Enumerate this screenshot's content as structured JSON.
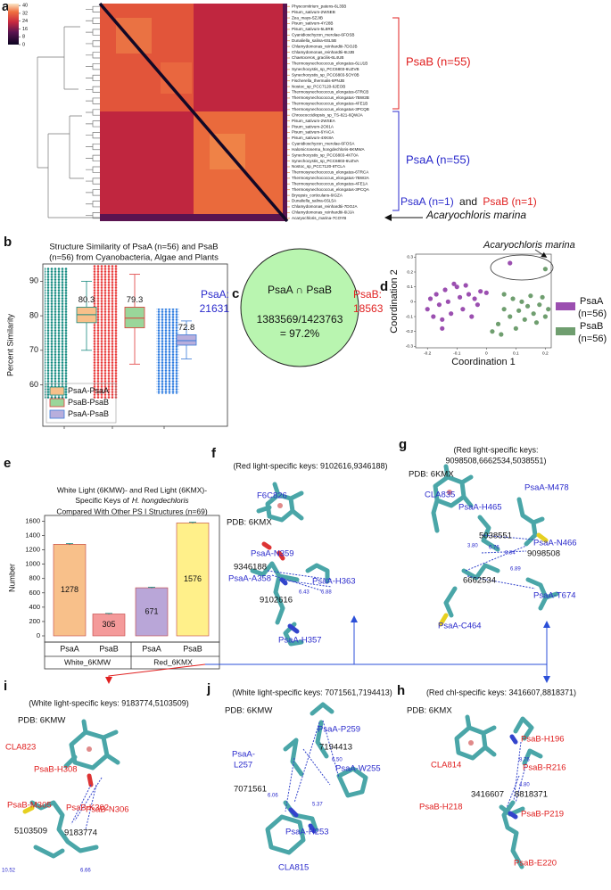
{
  "panel_a": {
    "label": "a",
    "colorbar_lim": [
      0,
      42
    ],
    "colorbar_ticks": [
      0,
      8,
      16,
      24,
      32,
      40
    ],
    "rows": [
      "Physcomitrium_patens-6L35B",
      "Pisum_sativum-2WSEB",
      "Zea_mays-5ZJIB",
      "Pisum_sativum-4Y28B",
      "Pisum_sativum-5L8RB",
      "Cyanidioschyzon_merolae-6FOSB",
      "Dunaliella_salina-6SL5B",
      "Chlamydomonas_reinhardtii-7DOJB",
      "Chlamydomonas_reinhardtii-6IJJB",
      "Chaetoceros_gracilis-6L4UB",
      "Thermosynechococcus_elongatus-6LU1B",
      "Synechocystis_sp_PCC6803-6UZVB",
      "Synechocystis_sp_PCC6803-5OY0B",
      "Fischerella_thermalis-6PNJB",
      "Nostoc_sp_PCC7120-6JEOB",
      "Thermosynechococcus_elongatus-6TRCB",
      "Thermosynechococcus_elongatus-7BW2B",
      "Thermosynechococcus_elongatus-4FE1B",
      "Thermosynechococcus_elongatus-3PCQB",
      "Chroococcidiopsis_sp_TS-821-6QWJA",
      "Pisum_sativum-2WSEA",
      "Pisum_sativum-2O01A",
      "Pisum_sativum-6YACA",
      "Pisum_sativum-4XK8A",
      "Cyanidioschyzon_merolae-6FOSA",
      "Halomicronema_hongdechloris-6KMWA",
      "Synechocystis_sp_PCC6803-4KT0A",
      "Synechocystis_sp_PCC6803-6UZVA",
      "Nostoc_sp_PCC7120-6TCLA",
      "Thermosynechococcus_elongatus-6TRCA",
      "Thermosynechococcus_elongatus-7BW2A",
      "Thermosynechococcus_elongatus-4FE1A",
      "Thermosynechococcus_elongatus-3PCQA",
      "Bryopsis_corticulans-6IGZA",
      "Dunaliella_salina-6SL5A",
      "Chlamydomonas_reinhardtii-7DOJA",
      "Chlamydomonas_reinhardtii-6IJJA",
      "Acaryochloris_marina-7COYB"
    ],
    "psab": "PsaB (n=55)",
    "psaa": "PsaA (n=55)",
    "mixed": {
      "psaa": "PsaA (n=1)",
      "and": "and",
      "psab": "PsaB (n=1)"
    },
    "species": "Acaryochloris marina"
  },
  "chart_data": [
    {
      "type": "box",
      "panel": "b",
      "title": [
        "Structure Similarity of PsaA (n=56) and PsaB",
        "(n=56) from Cyanobacteria, Algae and Plants"
      ],
      "ylabel": "Percent Similarity",
      "ylim": [
        48,
        95
      ],
      "yticks": [
        60,
        70,
        80,
        90
      ],
      "series": [
        {
          "name": "PsaA-PsaA",
          "color": "#f8c08a",
          "edge": "#1a8a80",
          "q1": 78,
          "median": 80.3,
          "q3": 82.5,
          "whisker_low": 70,
          "whisker_high": 90
        },
        {
          "name": "PsaB-PsaB",
          "color": "#9ad69a",
          "edge": "#e03a3a",
          "q1": 76.5,
          "median": 79.3,
          "q3": 82.5,
          "whisker_low": 66,
          "whisker_high": 92
        },
        {
          "name": "PsaA-PsaB",
          "color": "#b8aedc",
          "edge": "#3a7ad8",
          "q1": 71.5,
          "median": 72.8,
          "q3": 74.5,
          "whisker_low": 67.5,
          "whisker_high": 78.5
        }
      ]
    },
    {
      "type": "scatter",
      "panel": "d",
      "annotation": "Acaryochloris marina",
      "xlabel": "Coordination 1",
      "ylabel": "Coordination 2",
      "xlim": [
        -0.24,
        0.22
      ],
      "ylim": [
        -0.31,
        0.32
      ],
      "xticks": [
        -0.2,
        -0.1,
        0,
        0.1,
        0.2
      ],
      "yticks": [
        -0.3,
        -0.2,
        -0.1,
        0,
        0.1,
        0.2,
        0.3
      ],
      "series": [
        {
          "name": "PsaA",
          "count": "(n=56)",
          "color": "#9b4fb0",
          "x": [
            -0.2,
            -0.19,
            -0.18,
            -0.17,
            -0.16,
            -0.15,
            -0.14,
            -0.13,
            -0.12,
            -0.11,
            -0.1,
            -0.09,
            -0.08,
            -0.07,
            -0.06,
            -0.05,
            -0.04,
            -0.03,
            -0.02,
            0.0,
            -0.15,
            0.08
          ],
          "y": [
            -0.05,
            0.02,
            -0.1,
            0.05,
            -0.02,
            -0.12,
            0.08,
            0.0,
            -0.08,
            0.12,
            0.1,
            0.03,
            -0.05,
            0.11,
            0.05,
            -0.1,
            0.02,
            -0.02,
            0.07,
            0.06,
            -0.18,
            0.26
          ]
        },
        {
          "name": "PsaB",
          "count": "(n=56)",
          "color": "#6f9e6f",
          "x": [
            0.02,
            0.04,
            0.05,
            0.06,
            0.08,
            0.09,
            0.1,
            0.11,
            0.12,
            0.13,
            0.14,
            0.15,
            0.16,
            0.17,
            0.18,
            0.19,
            0.2,
            0.21,
            0.06,
            0.2
          ],
          "y": [
            -0.2,
            -0.15,
            -0.22,
            -0.05,
            -0.1,
            0.02,
            -0.18,
            -0.06,
            0.0,
            -0.12,
            -0.03,
            0.04,
            -0.08,
            -0.14,
            -0.02,
            0.03,
            -0.1,
            -0.05,
            0.05,
            0.22
          ]
        }
      ]
    },
    {
      "type": "bar",
      "panel": "e",
      "title": [
        "White Light (6KMW)- and Red Light (6KMX)-",
        "Specific Keys of",
        "H. hongdechloris",
        "Compared With Other PS I Structures (n=69)"
      ],
      "ylabel": "Number",
      "categories": [
        "PsaA",
        "PsaB",
        "PsaA",
        "PsaB"
      ],
      "groups": [
        "White_6KMW",
        "Red_6KMX"
      ],
      "values": [
        1278,
        305,
        671,
        1576
      ],
      "errors": [
        10,
        8,
        8,
        10
      ],
      "colors": [
        "#f8c08a",
        "#f49a9a",
        "#b9a6d8",
        "#fff08a"
      ],
      "ylim": [
        0,
        1680
      ],
      "yticks": [
        0,
        200,
        400,
        600,
        800,
        1000,
        1200,
        1400,
        1600
      ]
    }
  ],
  "panel_c": {
    "label": "c",
    "left_name": "PsaA:",
    "left_value": 21631,
    "right_name": "PsaB:",
    "right_value": 18563,
    "center": "PsaA ∩ PsaB",
    "ratio": "1383569/1423763",
    "result": "= 97.2%"
  },
  "structures": [
    {
      "label": "f",
      "title": [
        "(Red light-specific keys: 9102616,9346188)"
      ],
      "texts": [
        "F6C826",
        "PDB: 6KMX",
        "PsaA-N359",
        "9346188",
        "PsaA-A358",
        "PsaA-H363",
        "9102616",
        "PsaA-H357",
        "6.43",
        "6.88"
      ],
      "colors": [
        "#2b2bcc",
        "#111",
        "#2b2bcc",
        "#111",
        "#2b2bcc",
        "#2b2bcc",
        "#111",
        "#2b2bcc",
        "#2b2bcc",
        "#2b2bcc"
      ]
    },
    {
      "label": "g",
      "title": [
        "(Red light-specific keys:",
        "9098508,6662534,5038551)"
      ],
      "texts": [
        "PDB: 6KMX",
        "CLA835",
        "PsaA-M478",
        "PsaA-H465",
        "5038551",
        "PsaA-N466",
        "9098508",
        "6662534",
        "PsaA-T674",
        "PsaA-C464",
        "3.80",
        "6.76",
        "8.34",
        "6.89"
      ],
      "colors": [
        "#111",
        "#2b2bcc",
        "#2b2bcc",
        "#2b2bcc",
        "#111",
        "#2b2bcc",
        "#111",
        "#111",
        "#2b2bcc",
        "#2b2bcc",
        "#2b2bcc",
        "#2b2bcc",
        "#2b2bcc",
        "#2b2bcc"
      ]
    },
    {
      "label": "i",
      "title": [
        "(White light-specific keys: 9183774,5103509)"
      ],
      "texts": [
        "PDB: 6KMW",
        "CLA823",
        "PsaB-H308",
        "PsaB-M305",
        "5103509",
        "9183774",
        "PsaB-K302",
        "PsaB-N306",
        "10.52",
        "6.66"
      ],
      "colors": [
        "#111",
        "#e02020",
        "#e02020",
        "#e02020",
        "#111",
        "#111",
        "#e02020",
        "#e02020",
        "#2b2bcc",
        "#2b2bcc"
      ]
    },
    {
      "label": "j",
      "title": [
        "(White light-specific keys: 7071561,7194413)"
      ],
      "texts": [
        "PDB: 6KMW",
        "PsaA-P259",
        "7194413",
        "PsaA-W255",
        "PsaA-",
        "L257",
        "7071561",
        "PsaA-H253",
        "CLA815",
        "6.50",
        "6.06",
        "5.37"
      ],
      "colors": [
        "#111",
        "#2b2bcc",
        "#111",
        "#2b2bcc",
        "#2b2bcc",
        "#2b2bcc",
        "#111",
        "#2b2bcc",
        "#2b2bcc",
        "#2b2bcc",
        "#2b2bcc",
        "#2b2bcc"
      ]
    },
    {
      "label": "h",
      "title": [
        "(Red chl-specific keys: 3416607,8818371)"
      ],
      "texts": [
        "PDB: 6KMX",
        "PsaB-H196",
        "CLA814",
        "PsaB-R216",
        "3416607",
        "8818371",
        "PsaB-H218",
        "PsaB-P219",
        "PsaB-E220",
        "8.76",
        "4.80"
      ],
      "colors": [
        "#111",
        "#e02020",
        "#e02020",
        "#e02020",
        "#111",
        "#111",
        "#e02020",
        "#e02020",
        "#e02020",
        "#2b2bcc",
        "#2b2bcc"
      ]
    }
  ]
}
